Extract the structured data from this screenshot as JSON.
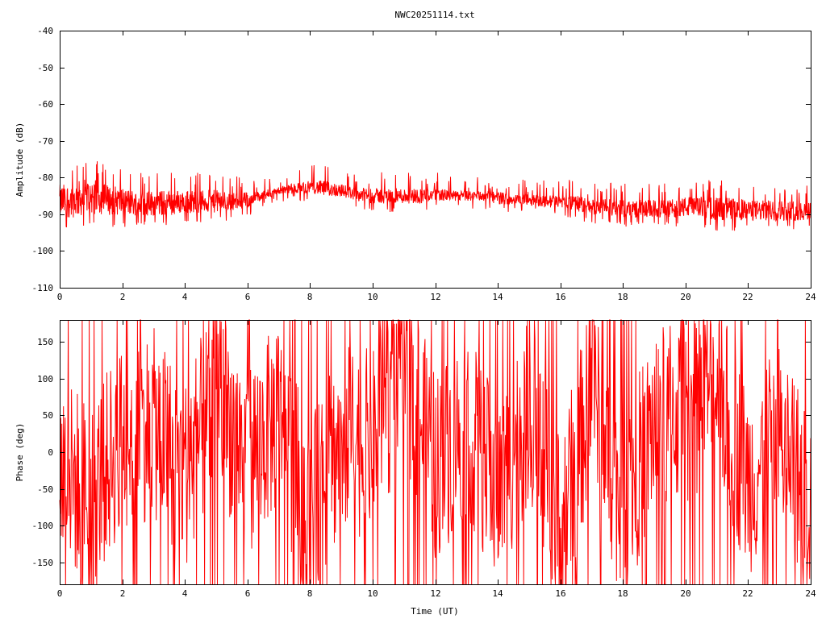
{
  "title": "NWC20251114.txt",
  "colors": {
    "trace": "#ff0000",
    "axes": "#000000",
    "background": "#ffffff"
  },
  "chart_data": [
    {
      "type": "line",
      "ylabel": "Amplitude (dB)",
      "xlabel": "",
      "xlim": [
        0,
        24
      ],
      "ylim": [
        -110,
        -40
      ],
      "xticks": [
        "0",
        "2",
        "4",
        "6",
        "8",
        "10",
        "12",
        "14",
        "16",
        "18",
        "20",
        "22",
        "24"
      ],
      "yticks": [
        "-40",
        "-50",
        "-60",
        "-70",
        "-80",
        "-90",
        "-100",
        "-110"
      ],
      "grid": false,
      "legend": "none",
      "series": [
        {
          "style": "dense noisy trace, envelope shown",
          "x": [
            0,
            0.5,
            1,
            1.5,
            2,
            2.5,
            3,
            3.5,
            4,
            4.5,
            5,
            5.5,
            6,
            6.5,
            7,
            7.5,
            8,
            8.5,
            9,
            9.5,
            10,
            10.5,
            11,
            11.5,
            12,
            12.5,
            13,
            13.5,
            14,
            14.5,
            15,
            15.5,
            16,
            16.5,
            17,
            17.5,
            18,
            18.5,
            19,
            19.5,
            20,
            20.5,
            21,
            21.5,
            22,
            22.5,
            23,
            23.5,
            24
          ],
          "upper": [
            -80,
            -79,
            -78,
            -80,
            -81,
            -82,
            -82,
            -82,
            -82,
            -82,
            -82,
            -83,
            -83,
            -83,
            -82,
            -81,
            -80,
            -80,
            -81,
            -82,
            -82,
            -82,
            -82,
            -82,
            -82,
            -83,
            -83,
            -83,
            -83,
            -84,
            -84,
            -84,
            -84,
            -84,
            -85,
            -85,
            -85,
            -85,
            -85,
            -85,
            -84,
            -84,
            -84,
            -84,
            -85,
            -85,
            -85,
            -85,
            -85
          ],
          "lower": [
            -93,
            -93,
            -92,
            -92,
            -92,
            -92,
            -92,
            -92,
            -91,
            -91,
            -91,
            -90,
            -89,
            -87,
            -85,
            -85,
            -85,
            -86,
            -86,
            -87,
            -88,
            -88,
            -88,
            -88,
            -87,
            -87,
            -87,
            -87,
            -88,
            -88,
            -88,
            -89,
            -89,
            -90,
            -91,
            -91,
            -92,
            -92,
            -92,
            -92,
            -92,
            -92,
            -93,
            -93,
            -93,
            -93,
            -93,
            -93,
            -93
          ]
        }
      ]
    },
    {
      "type": "line",
      "ylabel": "Phase (deg)",
      "xlabel": "Time (UT)",
      "xlim": [
        0,
        24
      ],
      "ylim": [
        -180,
        180
      ],
      "xticks": [
        "0",
        "2",
        "4",
        "6",
        "8",
        "10",
        "12",
        "14",
        "16",
        "18",
        "20",
        "22",
        "24"
      ],
      "yticks": [
        "150",
        "100",
        "50",
        "0",
        "-50",
        "-100",
        "-150"
      ],
      "grid": false,
      "legend": "none",
      "series": [
        {
          "style": "wrapped phase, spans full -180..180 range",
          "x": [
            0,
            1,
            2,
            3,
            4,
            5,
            6,
            7,
            8,
            9,
            10,
            11,
            12,
            13,
            14,
            15,
            16,
            17,
            18,
            19,
            20,
            21,
            22,
            23,
            24
          ],
          "y": [
            -20,
            -60,
            20,
            40,
            -30,
            80,
            -10,
            50,
            -90,
            20,
            10,
            120,
            -20,
            40,
            -60,
            60,
            -110,
            80,
            -80,
            40,
            60,
            90,
            -40,
            20,
            -70
          ]
        }
      ]
    }
  ]
}
